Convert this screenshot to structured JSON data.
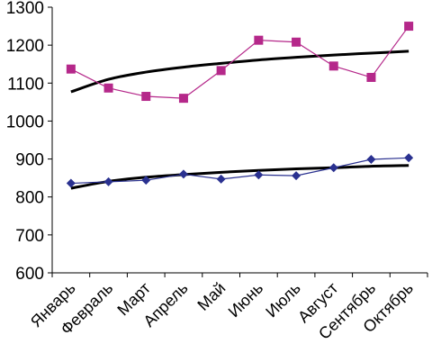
{
  "chart_data": {
    "type": "line",
    "categories": [
      "Январь",
      "Февраль",
      "Март",
      "Апрель",
      "Май",
      "Июнь",
      "Июль",
      "Август",
      "Сентябрь",
      "Октябрь"
    ],
    "ylim": [
      600,
      1300
    ],
    "yticks": [
      600,
      700,
      800,
      900,
      1000,
      1100,
      1200,
      1300
    ],
    "grid": false,
    "legend": "none",
    "series": [
      {
        "values": [
          1137,
          1087,
          1065,
          1060,
          1133,
          1213,
          1208,
          1145,
          1115,
          1250
        ],
        "color": "#b5288a",
        "marker": "square"
      },
      {
        "values": [
          836,
          840,
          844,
          860,
          847,
          858,
          856,
          877,
          899,
          903
        ],
        "color": "#2a3190",
        "marker": "diamond"
      }
    ],
    "trendlines": [
      {
        "type": "logarithmic",
        "values": [
          1077,
          1110,
          1129,
          1142,
          1152,
          1161,
          1168,
          1174,
          1179,
          1184
        ],
        "color": "#000000"
      },
      {
        "type": "logarithmic",
        "values": [
          823,
          841,
          852,
          859,
          865,
          870,
          874,
          877,
          881,
          883
        ],
        "color": "#000000"
      }
    ]
  }
}
